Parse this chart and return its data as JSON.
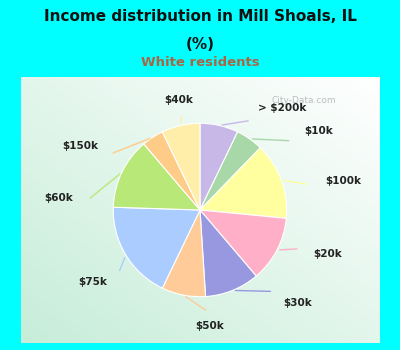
{
  "title_line1": "Income distribution in Mill Shoals, IL",
  "title_line2": "(%)",
  "subtitle": "White residents",
  "title_color": "#111111",
  "subtitle_color": "#aa6644",
  "bg_cyan": "#00ffff",
  "labels": [
    "> $200k",
    "$10k",
    "$100k",
    "$20k",
    "$30k",
    "$50k",
    "$75k",
    "$60k",
    "$150k",
    "$40k"
  ],
  "values": [
    7,
    5,
    14,
    12,
    10,
    8,
    18,
    13,
    4,
    7
  ],
  "colors": [
    "#c8b8e8",
    "#a8d8a8",
    "#ffffa0",
    "#ffb0c8",
    "#9898e0",
    "#ffcc99",
    "#aaccff",
    "#b8e878",
    "#ffcc88",
    "#ffeeaa"
  ],
  "wedge_edge_color": "white",
  "label_fontsize": 7.5,
  "label_color": "#222222",
  "watermark": "City-Data.com"
}
